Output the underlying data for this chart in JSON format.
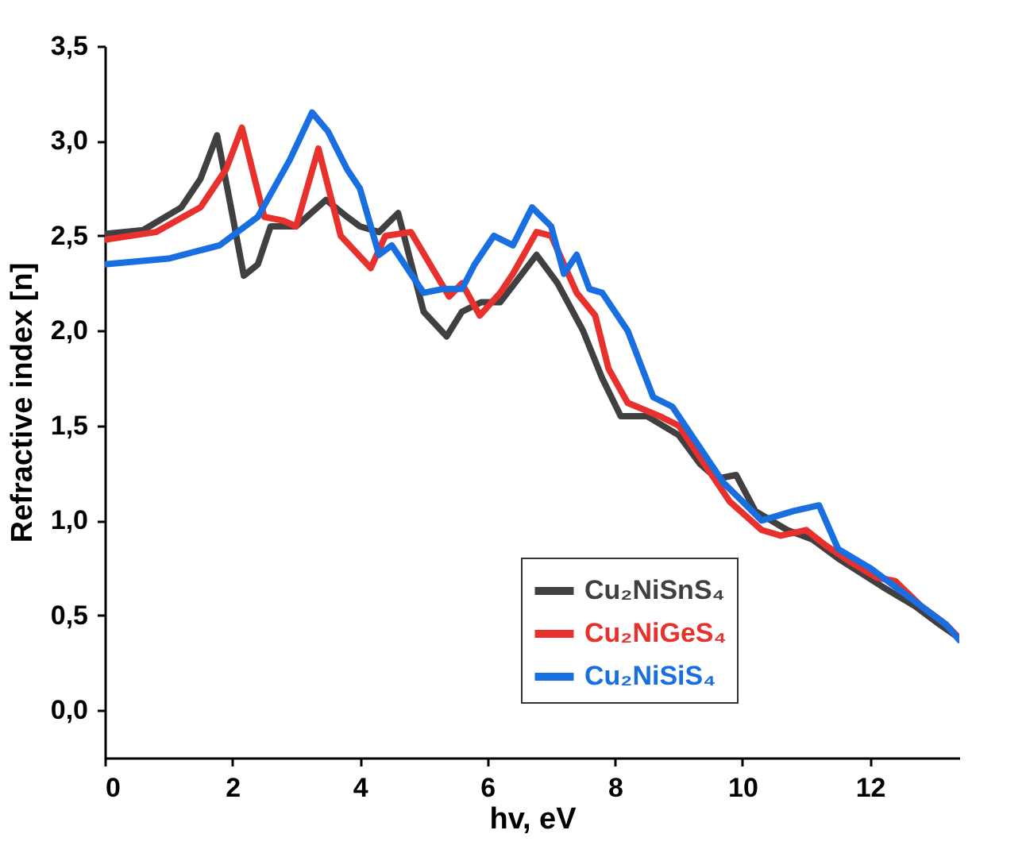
{
  "chart_data": {
    "type": "line",
    "xlabel": "hv, eV",
    "ylabel": "Refractive index [n]",
    "xlim": [
      0,
      13.4
    ],
    "ylim": [
      -0.25,
      3.5
    ],
    "xticks": [
      0,
      2,
      4,
      6,
      8,
      10,
      12
    ],
    "yticks": [
      {
        "value": 0,
        "label": "0,0"
      },
      {
        "value": 0.5,
        "label": "0,5"
      },
      {
        "value": 1,
        "label": "1,0"
      },
      {
        "value": 1.5,
        "label": "1,5"
      },
      {
        "value": 2,
        "label": "2,0"
      },
      {
        "value": 2.5,
        "label": "2,5"
      },
      {
        "value": 3,
        "label": "3,0"
      },
      {
        "value": 3.5,
        "label": "3,5"
      }
    ],
    "legend": "bottom right",
    "grid": false,
    "line_style": "solid",
    "marker": "none",
    "series": [
      {
        "name": "Cu₂NiSnS₄",
        "color": "#404040",
        "x": [
          0,
          0.6,
          1.2,
          1.5,
          1.76,
          1.95,
          2.18,
          2.4,
          2.6,
          3.0,
          3.47,
          3.8,
          4.0,
          4.3,
          4.6,
          5.0,
          5.36,
          5.6,
          5.9,
          6.2,
          6.77,
          7.1,
          7.5,
          7.8,
          8.09,
          8.5,
          9.0,
          9.33,
          9.6,
          9.9,
          10.2,
          10.7,
          11.1,
          11.5,
          12.2,
          12.7,
          13.1,
          13.4
        ],
        "values": [
          2.51,
          2.53,
          2.65,
          2.8,
          3.03,
          2.7,
          2.29,
          2.35,
          2.55,
          2.55,
          2.69,
          2.6,
          2.55,
          2.52,
          2.62,
          2.1,
          1.97,
          2.1,
          2.15,
          2.15,
          2.4,
          2.25,
          2.0,
          1.75,
          1.55,
          1.55,
          1.45,
          1.3,
          1.22,
          1.24,
          1.05,
          0.95,
          0.9,
          0.8,
          0.65,
          0.55,
          0.45,
          0.38
        ]
      },
      {
        "name": "Cu₂NiGeS₄",
        "color": "#e8302c",
        "x": [
          0,
          0.8,
          1.5,
          1.9,
          2.15,
          2.35,
          2.5,
          2.8,
          3.0,
          3.35,
          3.7,
          4.17,
          4.4,
          4.8,
          5.1,
          5.4,
          5.6,
          5.88,
          6.2,
          6.4,
          6.77,
          7.0,
          7.4,
          7.69,
          7.9,
          8.2,
          8.7,
          9.0,
          9.4,
          9.8,
          10.3,
          10.6,
          11.0,
          11.3,
          11.7,
          12.1,
          12.4,
          12.8,
          13.2,
          13.4
        ],
        "values": [
          2.48,
          2.52,
          2.65,
          2.85,
          3.07,
          2.8,
          2.6,
          2.58,
          2.55,
          2.96,
          2.5,
          2.33,
          2.5,
          2.52,
          2.35,
          2.18,
          2.25,
          2.08,
          2.2,
          2.3,
          2.52,
          2.5,
          2.2,
          2.08,
          1.8,
          1.62,
          1.55,
          1.5,
          1.3,
          1.1,
          0.95,
          0.92,
          0.95,
          0.87,
          0.78,
          0.7,
          0.68,
          0.55,
          0.45,
          0.38
        ]
      },
      {
        "name": "Cu₂NiSiS₄",
        "color": "#1a6fe0",
        "x": [
          0,
          1.0,
          1.8,
          2.4,
          2.9,
          3.25,
          3.5,
          3.8,
          4.0,
          4.3,
          4.5,
          4.8,
          5.0,
          5.3,
          5.6,
          5.8,
          6.1,
          6.4,
          6.7,
          7.0,
          7.2,
          7.4,
          7.6,
          7.8,
          8.2,
          8.6,
          8.9,
          9.3,
          9.7,
          10.0,
          10.3,
          10.8,
          11.2,
          11.5,
          12.0,
          12.4,
          12.8,
          13.2,
          13.4
        ],
        "values": [
          2.35,
          2.38,
          2.45,
          2.6,
          2.9,
          3.15,
          3.05,
          2.85,
          2.75,
          2.4,
          2.45,
          2.3,
          2.2,
          2.22,
          2.22,
          2.35,
          2.5,
          2.45,
          2.65,
          2.55,
          2.3,
          2.4,
          2.22,
          2.2,
          2.0,
          1.65,
          1.6,
          1.4,
          1.2,
          1.1,
          1.0,
          1.05,
          1.08,
          0.85,
          0.75,
          0.65,
          0.55,
          0.45,
          0.37
        ]
      }
    ]
  }
}
